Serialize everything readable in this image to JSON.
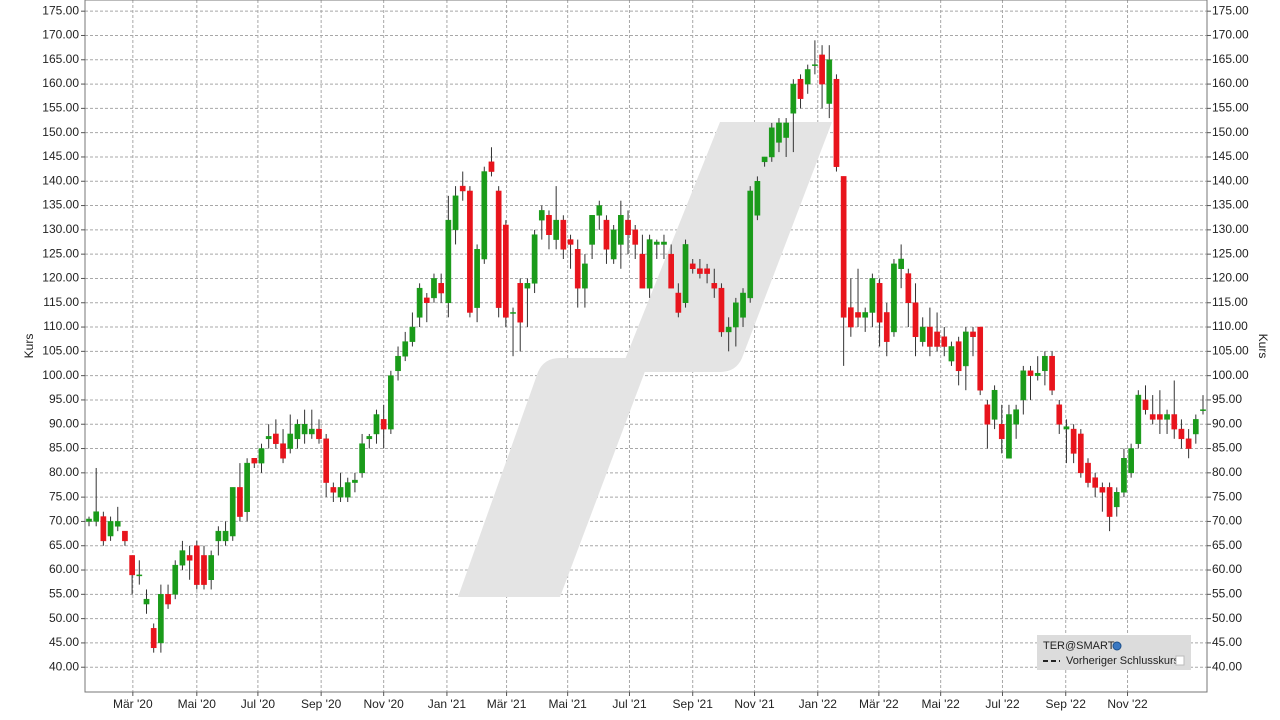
{
  "chart_data": {
    "type": "candlestick",
    "y_label": "Kurs",
    "grid": true,
    "up_color": "#1a9b1a",
    "down_color": "#e8141c",
    "legend": [
      "TER@SMART",
      "Vorheriger Schlusskurs"
    ],
    "ylim": [
      34.9,
      177.3
    ],
    "yticks": [
      {
        "value": 40,
        "label": "40.00"
      },
      {
        "value": 45,
        "label": "45.00"
      },
      {
        "value": 50,
        "label": "50.00"
      },
      {
        "value": 55,
        "label": "55.00"
      },
      {
        "value": 60,
        "label": "60.00"
      },
      {
        "value": 65,
        "label": "65.00"
      },
      {
        "value": 70,
        "label": "70.00"
      },
      {
        "value": 75,
        "label": "75.00"
      },
      {
        "value": 80,
        "label": "80.00"
      },
      {
        "value": 85,
        "label": "85.00"
      },
      {
        "value": 90,
        "label": "90.00"
      },
      {
        "value": 95,
        "label": "95.00"
      },
      {
        "value": 100,
        "label": "100.00"
      },
      {
        "value": 105,
        "label": "105.00"
      },
      {
        "value": 110,
        "label": "110.00"
      },
      {
        "value": 115,
        "label": "115.00"
      },
      {
        "value": 120,
        "label": "120.00"
      },
      {
        "value": 125,
        "label": "125.00"
      },
      {
        "value": 130,
        "label": "130.00"
      },
      {
        "value": 135,
        "label": "135.00"
      },
      {
        "value": 140,
        "label": "140.00"
      },
      {
        "value": 145,
        "label": "145.00"
      },
      {
        "value": 150,
        "label": "150.00"
      },
      {
        "value": 155,
        "label": "155.00"
      },
      {
        "value": 160,
        "label": "160.00"
      },
      {
        "value": 165,
        "label": "165.00"
      },
      {
        "value": 170,
        "label": "170.00"
      },
      {
        "value": 175,
        "label": "175.00"
      }
    ],
    "xticks": [
      {
        "value": 6.1,
        "label": "Mär '20"
      },
      {
        "value": 15.0,
        "label": "Mai '20"
      },
      {
        "value": 23.5,
        "label": "Jul '20"
      },
      {
        "value": 32.3,
        "label": "Sep '20"
      },
      {
        "value": 41.0,
        "label": "Nov '20"
      },
      {
        "value": 49.8,
        "label": "Jan '21"
      },
      {
        "value": 58.1,
        "label": "Mär '21"
      },
      {
        "value": 66.6,
        "label": "Mai '21"
      },
      {
        "value": 75.2,
        "label": "Jul '21"
      },
      {
        "value": 84.0,
        "label": "Sep '21"
      },
      {
        "value": 92.6,
        "label": "Nov '21"
      },
      {
        "value": 101.4,
        "label": "Jan '22"
      },
      {
        "value": 109.9,
        "label": "Mär '22"
      },
      {
        "value": 118.5,
        "label": "Mai '22"
      },
      {
        "value": 127.1,
        "label": "Jul '22"
      },
      {
        "value": 135.9,
        "label": "Sep '22"
      },
      {
        "value": 144.5,
        "label": "Nov '22"
      }
    ],
    "open": [
      70,
      70,
      71,
      67,
      69,
      68,
      63,
      59,
      53,
      48,
      45,
      55,
      55,
      61,
      63,
      65,
      63,
      58,
      66,
      66,
      67,
      77,
      72,
      83,
      82,
      87,
      88,
      86,
      85,
      87,
      88,
      88,
      89,
      87,
      77,
      75,
      75,
      78,
      80,
      87,
      88,
      91,
      89,
      101,
      104,
      107,
      112,
      116,
      116,
      119,
      115,
      130,
      139,
      138,
      114,
      124,
      144,
      138,
      131,
      113,
      119,
      118,
      119,
      132,
      133,
      128,
      132,
      128,
      126,
      118,
      127,
      133,
      132,
      124,
      127,
      132,
      130,
      125,
      118,
      127,
      127,
      125,
      117,
      115,
      123,
      122,
      122,
      119,
      118,
      109,
      110,
      112,
      116,
      133,
      144,
      145,
      148,
      149,
      154,
      161,
      160,
      164,
      166,
      156,
      161,
      141,
      114,
      113,
      112,
      113,
      119,
      113,
      109,
      122,
      121,
      115,
      107,
      110,
      109,
      108,
      103,
      107,
      102,
      109,
      110,
      94,
      91,
      90,
      83,
      90,
      95,
      101,
      100,
      101,
      104,
      94,
      89,
      89,
      88,
      82,
      79,
      77,
      77,
      73,
      76,
      80,
      86,
      95,
      92,
      92,
      91,
      92,
      89,
      87,
      88,
      93
    ],
    "high": [
      71,
      81,
      72,
      71,
      73,
      68,
      63,
      62,
      56,
      49,
      57,
      57,
      62,
      66,
      65,
      66,
      65,
      64,
      69,
      70,
      77,
      82,
      83,
      83,
      86,
      90,
      91,
      89,
      92,
      91,
      93,
      93,
      91,
      88,
      78,
      80,
      79,
      80,
      88,
      88,
      93,
      94,
      101,
      106,
      109,
      113,
      119,
      117,
      121,
      121,
      137,
      139,
      142,
      139,
      127,
      143,
      147,
      139,
      132,
      114,
      120,
      120,
      130,
      135,
      134,
      139,
      133,
      129,
      128,
      125,
      133,
      136,
      133,
      131,
      136,
      134,
      131,
      129,
      129,
      128,
      129,
      127,
      119,
      128,
      124,
      124,
      123,
      122,
      119,
      112,
      116,
      118,
      139,
      141,
      145,
      152,
      153,
      153,
      161,
      162,
      164,
      169,
      168,
      168,
      162,
      141,
      120,
      122,
      114,
      121,
      120,
      115,
      124,
      127,
      122,
      119,
      112,
      114,
      113,
      110,
      107,
      108,
      110,
      110,
      110,
      95,
      98,
      94,
      94,
      94,
      102,
      102,
      104,
      105,
      105,
      95,
      91,
      90,
      89,
      83,
      80,
      78,
      78,
      77,
      85,
      86,
      97,
      98,
      96,
      97,
      93,
      99,
      91,
      89,
      92,
      96
    ],
    "low": [
      69,
      69,
      65,
      66,
      68,
      65,
      55,
      57,
      51,
      43,
      43,
      52,
      54,
      60,
      58,
      56,
      56,
      56,
      63,
      65,
      66,
      70,
      70,
      81,
      80,
      85,
      85,
      82,
      84,
      85,
      86,
      87,
      86,
      75,
      74,
      74,
      74,
      76,
      79,
      85,
      86,
      85,
      88,
      99,
      103,
      106,
      110,
      111,
      115,
      115,
      112,
      127,
      136,
      112,
      111,
      123,
      141,
      112,
      110,
      104,
      105,
      110,
      117,
      128,
      126,
      126,
      124,
      122,
      114,
      114,
      124,
      130,
      123,
      123,
      122,
      125,
      124,
      118,
      116,
      124,
      124,
      118,
      112,
      114,
      121,
      120,
      119,
      116,
      108,
      105,
      106,
      110,
      115,
      132,
      143,
      144,
      146,
      145,
      146,
      155,
      158,
      162,
      155,
      153,
      142,
      102,
      108,
      110,
      109,
      110,
      106,
      104,
      108,
      118,
      110,
      104,
      106,
      104,
      105,
      104,
      102,
      98,
      97,
      104,
      96,
      85,
      89,
      84,
      83,
      87,
      92,
      95,
      99,
      98,
      96,
      88,
      82,
      82,
      79,
      77,
      75,
      72,
      68,
      71,
      75,
      79,
      85,
      92,
      90,
      88,
      88,
      87,
      85,
      83,
      86,
      92
    ],
    "close": [
      70.5,
      72,
      66,
      70,
      70,
      66,
      59,
      59,
      54,
      44,
      55,
      53,
      61,
      64,
      62,
      57,
      57,
      63,
      68,
      68,
      77,
      71,
      82,
      82,
      85,
      87.5,
      86,
      83,
      88,
      90,
      90,
      89,
      87,
      78,
      76,
      77,
      78,
      78.5,
      86,
      87.5,
      92,
      89,
      100,
      104,
      107,
      110,
      118,
      115,
      120,
      117,
      132,
      137,
      138,
      113,
      126,
      142,
      142,
      114,
      112,
      113,
      111,
      119,
      129,
      134,
      129,
      132,
      126,
      127,
      118,
      123,
      133,
      135,
      126,
      130,
      133,
      129,
      127,
      118,
      128,
      127.5,
      127.5,
      118,
      113,
      127,
      122,
      121,
      121,
      118,
      109,
      110,
      115,
      117,
      138,
      140,
      145,
      151,
      152,
      152,
      160,
      157,
      163,
      164,
      160,
      165,
      143,
      112,
      110,
      112,
      113,
      120,
      111,
      107,
      123,
      124,
      115,
      108,
      110,
      106,
      106,
      106,
      106,
      101,
      109,
      108,
      97,
      90,
      97,
      87,
      92,
      93,
      101,
      100,
      100.5,
      104,
      97,
      90,
      89.5,
      84,
      80,
      78,
      77,
      76,
      71,
      76,
      83,
      85,
      96,
      93,
      91,
      91,
      92,
      89,
      87,
      85,
      91,
      93
    ]
  }
}
